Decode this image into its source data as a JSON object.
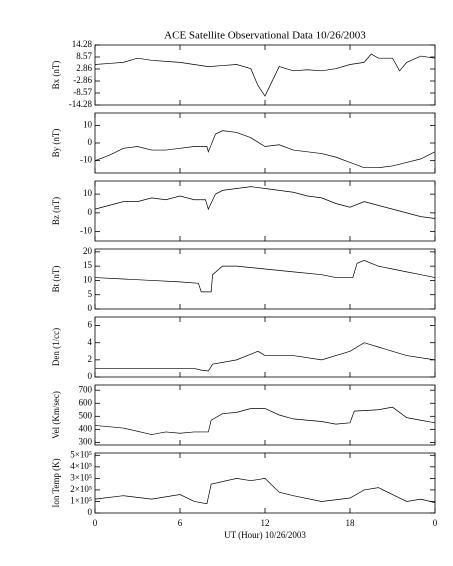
{
  "chart_data": [
    {
      "type": "line",
      "title": "ACE Satellite Observational Data   10/26/2003",
      "ylabel": "Bx (nT)",
      "xlim": [
        0,
        24
      ],
      "ylim": [
        -14.28,
        14.28
      ],
      "yticks": [
        14.28,
        8.57,
        2.86,
        -2.86,
        -8.57,
        -14.28
      ],
      "x": [
        0,
        1,
        2,
        3,
        4,
        5,
        6,
        7,
        8,
        9,
        10,
        11,
        11.5,
        12,
        12.5,
        13,
        14,
        15,
        16,
        17,
        18,
        19,
        19.5,
        20,
        21,
        21.5,
        22,
        23,
        24
      ],
      "values": [
        5,
        5.5,
        6,
        8,
        7,
        6.5,
        6,
        5,
        4,
        4.5,
        5,
        3,
        -5,
        -10,
        -3,
        4,
        2,
        2.5,
        2,
        3,
        5,
        6,
        10,
        8,
        8,
        2,
        6,
        9,
        8
      ]
    },
    {
      "type": "line",
      "ylabel": "By (nT)",
      "xlim": [
        0,
        24
      ],
      "ylim": [
        -17,
        17
      ],
      "yticks": [
        10,
        0,
        -10
      ],
      "x": [
        0,
        1,
        2,
        3,
        4,
        5,
        6,
        7,
        7.9,
        8,
        8.5,
        9,
        10,
        11,
        12,
        13,
        14,
        15,
        16,
        17,
        18,
        19,
        20,
        21,
        22,
        23,
        24
      ],
      "values": [
        -10,
        -7,
        -3,
        -2,
        -4,
        -4,
        -3,
        -2,
        -2,
        -5,
        5,
        7,
        6,
        3,
        -2,
        -1,
        -4,
        -5,
        -6,
        -8,
        -11,
        -14,
        -14,
        -13,
        -11,
        -9,
        -5
      ]
    },
    {
      "type": "line",
      "ylabel": "Bz (nT)",
      "xlim": [
        0,
        24
      ],
      "ylim": [
        -15,
        17
      ],
      "yticks": [
        10,
        0,
        -10
      ],
      "x": [
        0,
        1,
        2,
        3,
        4,
        5,
        6,
        7,
        7.8,
        8,
        8.5,
        9,
        10,
        11,
        12,
        13,
        14,
        15,
        16,
        17,
        18,
        19,
        20,
        21,
        22,
        23,
        24
      ],
      "values": [
        2,
        4,
        6,
        6,
        8,
        7,
        9,
        7,
        7,
        2,
        10,
        12,
        13,
        14,
        13,
        12,
        11,
        9,
        8,
        5,
        3,
        6,
        4,
        2,
        0,
        -2,
        -3
      ]
    },
    {
      "type": "line",
      "ylabel": "Bt (nT)",
      "xlim": [
        0,
        24
      ],
      "ylim": [
        0,
        21
      ],
      "yticks": [
        20,
        15,
        10,
        5,
        0
      ],
      "x": [
        0,
        2,
        4,
        6,
        7.3,
        7.5,
        8.2,
        8.3,
        9,
        10,
        12,
        14,
        16,
        17,
        18.2,
        18.5,
        19,
        20,
        21,
        22,
        23,
        24
      ],
      "values": [
        11,
        10.5,
        10,
        9.5,
        9,
        6,
        6,
        12,
        15,
        15,
        14,
        13,
        12,
        11,
        11,
        16,
        17,
        15,
        14,
        13,
        12,
        11
      ]
    },
    {
      "type": "line",
      "ylabel": "Den (1/cc)",
      "xlim": [
        0,
        24
      ],
      "ylim": [
        0,
        7
      ],
      "yticks": [
        6,
        4,
        2,
        0
      ],
      "x": [
        0,
        3,
        7,
        7.5,
        8,
        8.3,
        10,
        11.5,
        12,
        14,
        16,
        18,
        19,
        20,
        21,
        22,
        24
      ],
      "values": [
        1,
        1,
        1,
        0.8,
        0.7,
        1.5,
        2,
        3,
        2.5,
        2.5,
        2,
        3,
        4,
        3.5,
        3,
        2.5,
        2
      ]
    },
    {
      "type": "line",
      "ylabel": "Vel (Km/sec)",
      "xlim": [
        0,
        24
      ],
      "ylim": [
        280,
        740
      ],
      "yticks": [
        700,
        600,
        500,
        400,
        300
      ],
      "x": [
        0,
        2,
        4,
        5,
        6,
        7,
        8,
        8.2,
        9,
        10,
        11,
        12,
        13,
        14,
        15,
        16,
        17,
        18,
        18.3,
        20,
        21,
        22,
        23,
        24
      ],
      "values": [
        430,
        410,
        360,
        380,
        370,
        380,
        380,
        470,
        520,
        530,
        560,
        560,
        510,
        480,
        470,
        460,
        440,
        450,
        540,
        550,
        570,
        490,
        470,
        450
      ]
    },
    {
      "type": "line",
      "ylabel": "Ion Temp (K)",
      "xlabel": "UT (Hour)   10/26/2003",
      "xlim": [
        0,
        24
      ],
      "ylim": [
        0,
        520000
      ],
      "yticks": [
        0,
        {
          "value": 100000,
          "label": "1×10⁵"
        },
        {
          "value": 200000,
          "label": "2×10⁵"
        },
        {
          "value": 300000,
          "label": "3×10⁵"
        },
        {
          "value": 400000,
          "label": "4×10⁵"
        },
        {
          "value": 500000,
          "label": "5×10⁵"
        }
      ],
      "xticks": [
        0,
        6,
        12,
        18,
        {
          "value": 24,
          "label": "0"
        }
      ],
      "x": [
        0,
        2,
        4,
        6,
        7,
        7.9,
        8.2,
        10,
        11,
        12,
        13,
        14,
        16,
        18,
        19,
        20,
        21,
        22,
        23,
        24
      ],
      "values": [
        120000,
        150000,
        120000,
        160000,
        100000,
        80000,
        250000,
        300000,
        280000,
        300000,
        180000,
        150000,
        100000,
        130000,
        200000,
        220000,
        160000,
        100000,
        120000,
        90000
      ]
    }
  ]
}
